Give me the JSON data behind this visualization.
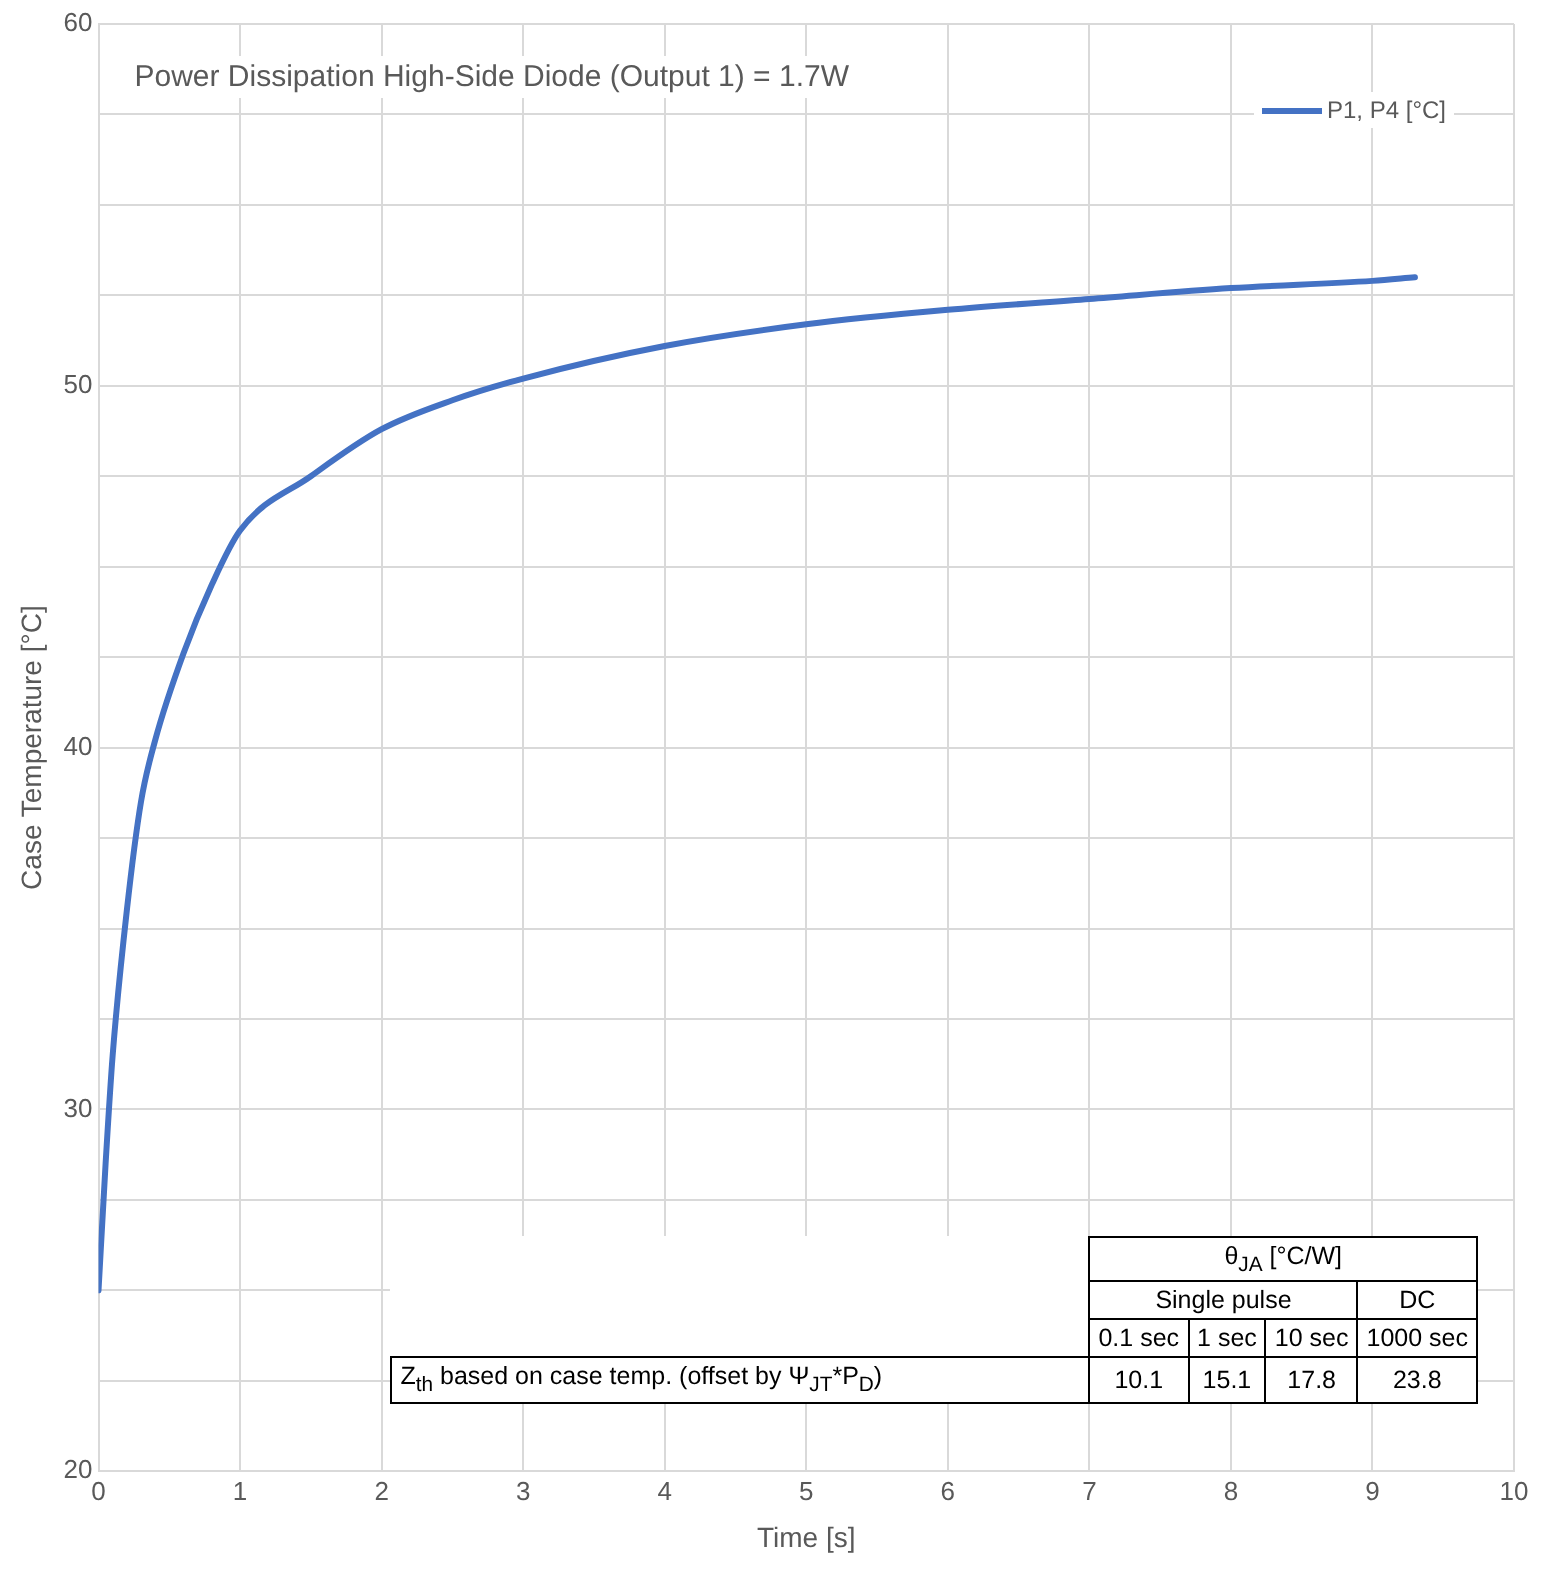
{
  "chart_data": {
    "type": "line",
    "title": "Power Dissipation High-Side Diode (Output 1) = 1.7W",
    "xlabel": "Time [s]",
    "ylabel": "Case Temperature [°C]",
    "x": [
      0,
      0.05,
      0.1,
      0.2,
      0.3,
      0.4,
      0.6,
      0.8,
      1,
      1.5,
      2,
      2.5,
      3,
      4,
      5,
      6,
      7,
      8,
      9,
      9.3
    ],
    "series": [
      {
        "name": "P1, P4 [°C]",
        "color": "#4472c4",
        "values": [
          25,
          28.5,
          31.5,
          35.5,
          38.5,
          40.2,
          42.6,
          44.5,
          46,
          47.5,
          48.8,
          49.6,
          50.2,
          51.1,
          51.7,
          52.1,
          52.4,
          52.7,
          52.9,
          53.0
        ]
      }
    ],
    "xlim": [
      0,
      10
    ],
    "xticks": [
      0,
      1,
      2,
      3,
      4,
      5,
      6,
      7,
      8,
      9,
      10
    ],
    "ylim": [
      20,
      60
    ],
    "yticks": [
      20,
      {
        "value": 22.5,
        "label": null
      },
      {
        "value": 25,
        "label": null
      },
      {
        "value": 27.5,
        "label": null
      },
      30,
      {
        "value": 32.5,
        "label": null
      },
      {
        "value": 35,
        "label": null
      },
      {
        "value": 37.5,
        "label": null
      },
      40,
      {
        "value": 42.5,
        "label": null
      },
      {
        "value": 45,
        "label": null
      },
      {
        "value": 47.5,
        "label": null
      },
      50,
      {
        "value": 52.5,
        "label": null
      },
      {
        "value": 55,
        "label": null
      },
      {
        "value": 57.5,
        "label": null
      },
      60
    ],
    "grid": true,
    "legend": "top right",
    "marker": "none",
    "line_style": "solid",
    "annotations": [
      "θ$_{JA}$ [°C/W]",
      "Single pulse",
      "DC",
      "0.1 sec",
      "1 sec",
      "10 sec",
      "1000 sec",
      "Z$_{th}$ based on case temp. (offset by Ψ$_{JT}$*P$_{D}$)",
      "10.1",
      "15.1",
      "17.8",
      "23.8"
    ]
  }
}
